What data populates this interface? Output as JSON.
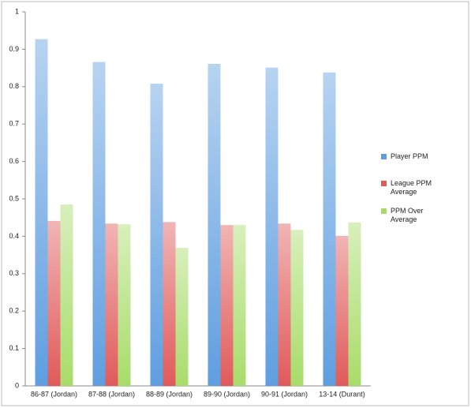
{
  "chart_data": {
    "type": "bar",
    "categories": [
      "86-87 (Jordan)",
      "87-88 (Jordan)",
      "88-89 (Jordan)",
      "89-90 (Jordan)",
      "90-91 (Jordan)",
      "13-14 (Durant)"
    ],
    "series": [
      {
        "name": "Player PPM",
        "color": "#5f9ee0",
        "values": [
          0.927,
          0.866,
          0.808,
          0.861,
          0.851,
          0.838
        ]
      },
      {
        "name": "League PPM Average",
        "color": "#e05a5a",
        "values": [
          0.441,
          0.434,
          0.438,
          0.43,
          0.434,
          0.401
        ]
      },
      {
        "name": "PPM Over Average",
        "color": "#a8dc6a",
        "values": [
          0.485,
          0.432,
          0.369,
          0.43,
          0.417,
          0.437
        ]
      }
    ],
    "ylim": [
      0,
      1
    ],
    "yticks": [
      0,
      0.1,
      0.2,
      0.3,
      0.4,
      0.5,
      0.6,
      0.7,
      0.8,
      0.9,
      1
    ],
    "legend": "right"
  }
}
